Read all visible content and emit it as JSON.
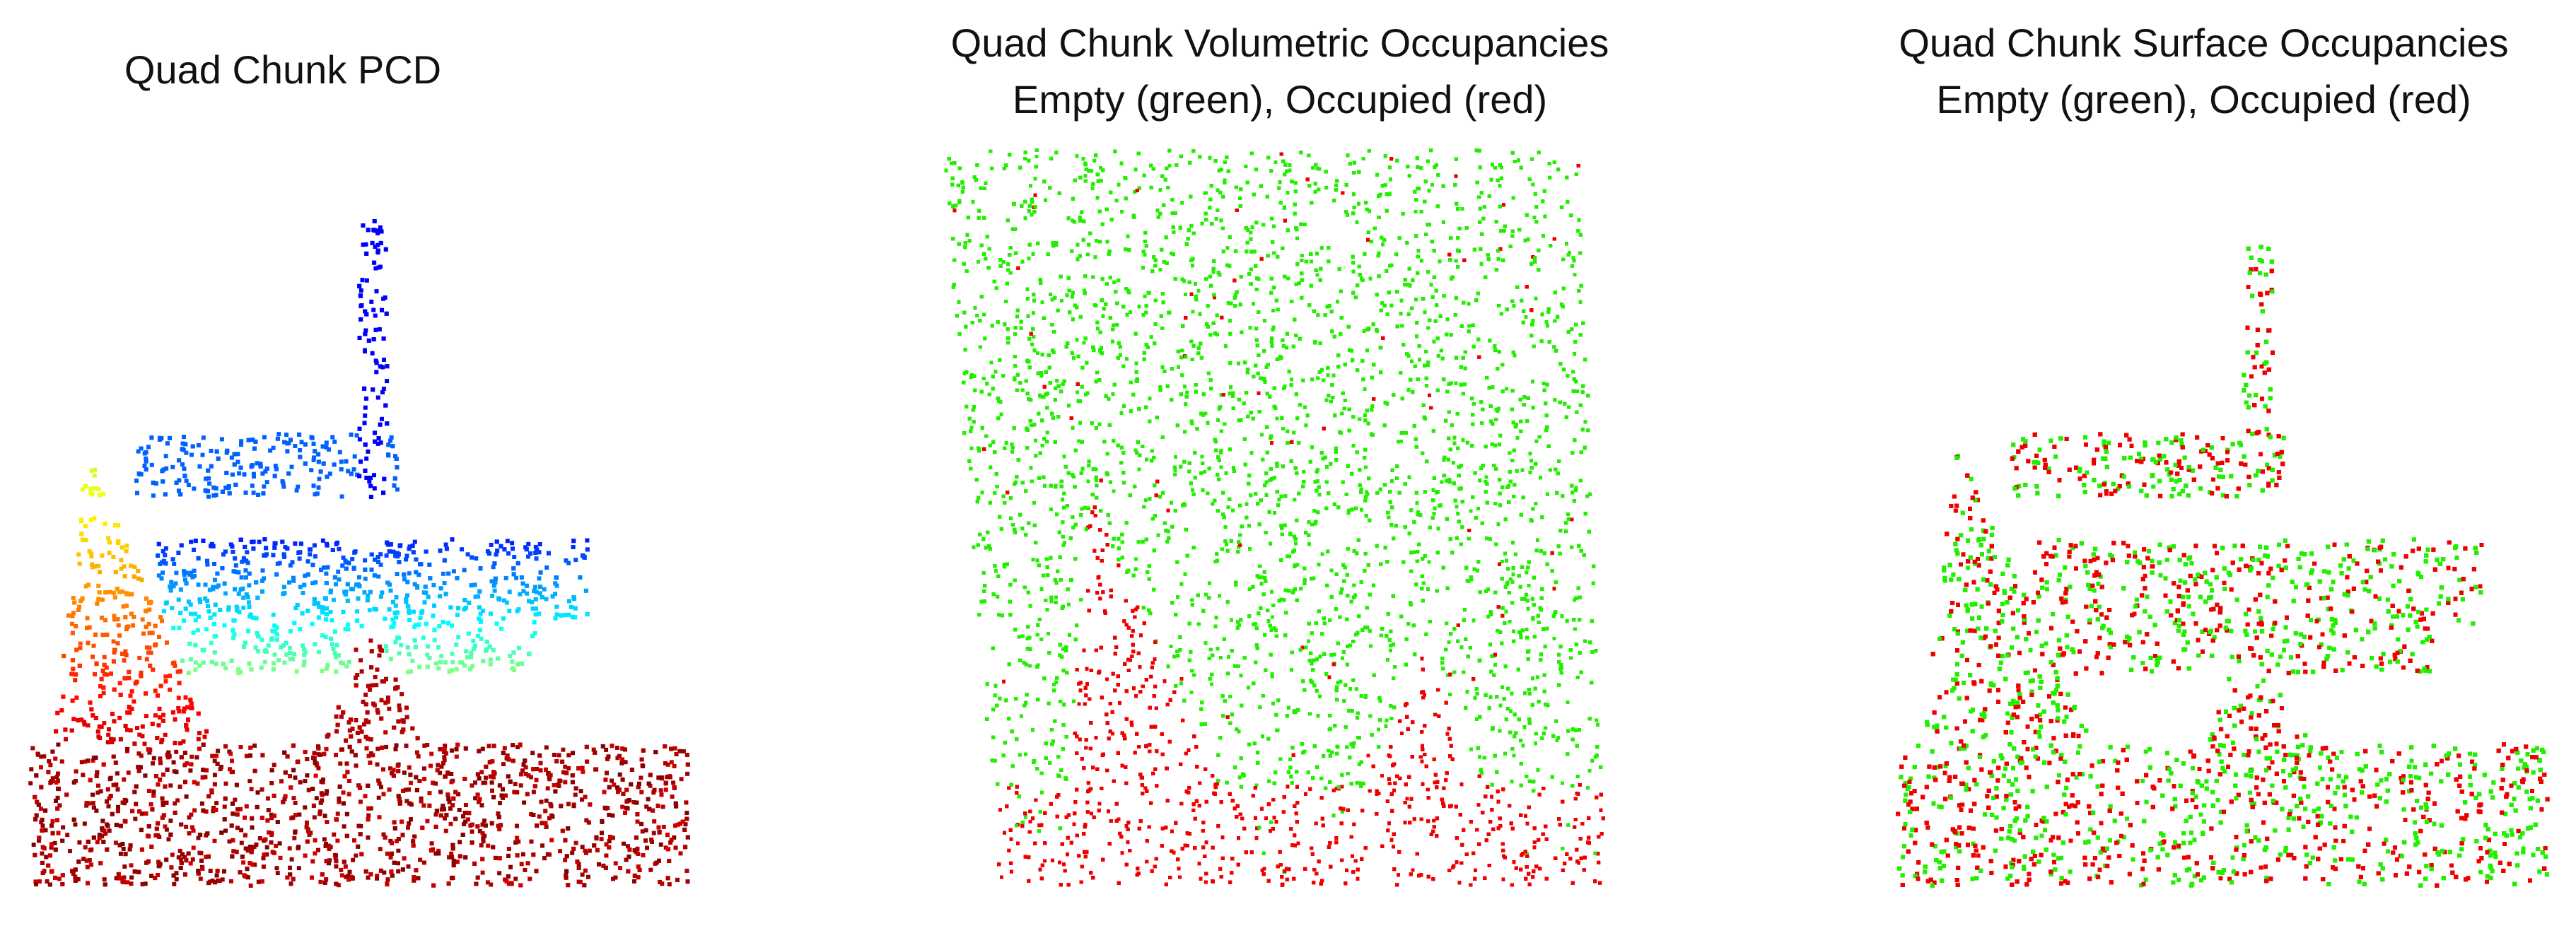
{
  "panels": [
    {
      "title": "Quad Chunk PCD",
      "subtitle": "",
      "colormap": "jet (height)",
      "image_description_colors": {
        "low": "#8b0000",
        "mid": "#ffff00",
        "high": "#1a3ad6"
      }
    },
    {
      "title": "Quad Chunk Volumetric Occupancies",
      "subtitle": "Empty (green), Occupied (red)",
      "colors": {
        "empty": "#22ee00",
        "occupied": "#ee0000"
      }
    },
    {
      "title": "Quad Chunk Surface Occupancies",
      "subtitle": "Empty (green), Occupied (red)",
      "colors": {
        "empty": "#22ee00",
        "occupied": "#ee0000"
      }
    }
  ]
}
